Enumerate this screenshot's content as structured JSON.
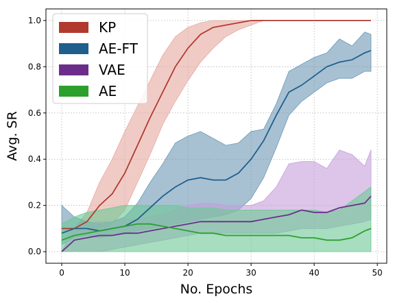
{
  "chart_data": {
    "type": "line",
    "title": "",
    "xlabel": "No. Epochs",
    "ylabel": "Avg. SR",
    "xlim": [
      -2.5,
      51.5
    ],
    "ylim": [
      -0.05,
      1.05
    ],
    "x_ticks": [
      0,
      10,
      20,
      30,
      40,
      50
    ],
    "y_ticks": [
      0.0,
      0.2,
      0.4,
      0.6,
      0.8,
      1.0
    ],
    "x_tick_labels": [
      "0",
      "10",
      "20",
      "30",
      "40",
      "50"
    ],
    "y_tick_labels": [
      "0.0",
      "0.2",
      "0.4",
      "0.6",
      "0.8",
      "1.0"
    ],
    "grid": true,
    "legend_position": "top-left",
    "series": [
      {
        "name": "KP",
        "line_color": "#b03a2e",
        "band_color": "#e6a8a0",
        "x": [
          0,
          2,
          4,
          6,
          8,
          10,
          12,
          14,
          16,
          18,
          20,
          22,
          24,
          26,
          28,
          30,
          32,
          34,
          36,
          38,
          40,
          42,
          44,
          46,
          48,
          49
        ],
        "mean": [
          0.1,
          0.1,
          0.13,
          0.2,
          0.25,
          0.34,
          0.46,
          0.58,
          0.69,
          0.8,
          0.88,
          0.94,
          0.97,
          0.98,
          0.99,
          1.0,
          1.0,
          1.0,
          1.0,
          1.0,
          1.0,
          1.0,
          1.0,
          1.0,
          1.0,
          1.0
        ],
        "lower": [
          0.1,
          0.1,
          0.1,
          0.1,
          0.12,
          0.18,
          0.3,
          0.42,
          0.55,
          0.65,
          0.74,
          0.82,
          0.88,
          0.93,
          0.96,
          0.98,
          1.0,
          1.0,
          1.0,
          1.0,
          1.0,
          1.0,
          1.0,
          1.0,
          1.0,
          1.0
        ],
        "upper": [
          0.1,
          0.1,
          0.17,
          0.3,
          0.4,
          0.52,
          0.63,
          0.74,
          0.85,
          0.93,
          0.97,
          0.99,
          1.0,
          1.0,
          1.0,
          1.0,
          1.0,
          1.0,
          1.0,
          1.0,
          1.0,
          1.0,
          1.0,
          1.0,
          1.0,
          1.0
        ]
      },
      {
        "name": "AE-FT",
        "line_color": "#1f5f8b",
        "band_color": "#6d98b5",
        "x": [
          0,
          2,
          4,
          6,
          8,
          10,
          12,
          14,
          16,
          18,
          20,
          22,
          24,
          26,
          28,
          30,
          32,
          34,
          36,
          38,
          40,
          42,
          44,
          46,
          48,
          49
        ],
        "mean": [
          0.08,
          0.1,
          0.1,
          0.09,
          0.1,
          0.11,
          0.14,
          0.19,
          0.24,
          0.28,
          0.31,
          0.32,
          0.31,
          0.31,
          0.34,
          0.4,
          0.48,
          0.59,
          0.69,
          0.72,
          0.76,
          0.8,
          0.82,
          0.83,
          0.86,
          0.87
        ],
        "lower": [
          0.03,
          0.06,
          0.07,
          0.06,
          0.07,
          0.08,
          0.09,
          0.1,
          0.11,
          0.12,
          0.13,
          0.14,
          0.15,
          0.16,
          0.18,
          0.23,
          0.32,
          0.45,
          0.59,
          0.65,
          0.69,
          0.73,
          0.75,
          0.75,
          0.78,
          0.78
        ],
        "upper": [
          0.2,
          0.15,
          0.13,
          0.12,
          0.13,
          0.15,
          0.21,
          0.3,
          0.38,
          0.47,
          0.5,
          0.52,
          0.49,
          0.46,
          0.47,
          0.52,
          0.53,
          0.64,
          0.78,
          0.81,
          0.84,
          0.86,
          0.92,
          0.89,
          0.95,
          0.94
        ]
      },
      {
        "name": "VAE",
        "line_color": "#6c2d8a",
        "band_color": "#c49fdb",
        "x": [
          0,
          2,
          4,
          6,
          8,
          10,
          12,
          14,
          16,
          18,
          20,
          22,
          24,
          26,
          28,
          30,
          32,
          34,
          36,
          38,
          40,
          42,
          44,
          46,
          48,
          49
        ],
        "mean": [
          0.0,
          0.05,
          0.06,
          0.07,
          0.07,
          0.08,
          0.08,
          0.09,
          0.1,
          0.11,
          0.12,
          0.13,
          0.13,
          0.13,
          0.13,
          0.13,
          0.14,
          0.15,
          0.16,
          0.18,
          0.17,
          0.17,
          0.19,
          0.2,
          0.21,
          0.24
        ],
        "lower": [
          0.0,
          0.0,
          0.0,
          0.0,
          0.01,
          0.02,
          0.03,
          0.04,
          0.05,
          0.06,
          0.07,
          0.08,
          0.08,
          0.08,
          0.08,
          0.08,
          0.08,
          0.08,
          0.09,
          0.1,
          0.1,
          0.1,
          0.11,
          0.12,
          0.13,
          0.14
        ],
        "upper": [
          0.0,
          0.11,
          0.12,
          0.13,
          0.13,
          0.14,
          0.14,
          0.15,
          0.16,
          0.18,
          0.2,
          0.21,
          0.21,
          0.2,
          0.2,
          0.2,
          0.22,
          0.28,
          0.38,
          0.39,
          0.39,
          0.36,
          0.44,
          0.42,
          0.37,
          0.44
        ]
      },
      {
        "name": "AE",
        "line_color": "#2ca02c",
        "band_color": "#6ac895",
        "x": [
          0,
          2,
          4,
          6,
          8,
          10,
          12,
          14,
          16,
          18,
          20,
          22,
          24,
          26,
          28,
          30,
          32,
          34,
          36,
          38,
          40,
          42,
          44,
          46,
          48,
          49
        ],
        "mean": [
          0.05,
          0.07,
          0.08,
          0.09,
          0.1,
          0.11,
          0.12,
          0.12,
          0.11,
          0.1,
          0.09,
          0.08,
          0.08,
          0.07,
          0.07,
          0.07,
          0.07,
          0.07,
          0.07,
          0.06,
          0.06,
          0.05,
          0.05,
          0.06,
          0.09,
          0.1
        ],
        "lower": [
          0.0,
          0.0,
          0.0,
          0.0,
          0.0,
          0.0,
          0.0,
          0.0,
          0.0,
          0.0,
          0.0,
          0.0,
          0.0,
          0.0,
          0.0,
          0.0,
          0.0,
          0.0,
          0.0,
          0.0,
          0.0,
          0.0,
          0.0,
          0.0,
          0.0,
          0.0
        ],
        "upper": [
          0.12,
          0.15,
          0.17,
          0.18,
          0.19,
          0.2,
          0.2,
          0.2,
          0.2,
          0.2,
          0.19,
          0.19,
          0.19,
          0.18,
          0.18,
          0.18,
          0.18,
          0.18,
          0.18,
          0.18,
          0.18,
          0.17,
          0.18,
          0.22,
          0.26,
          0.28
        ]
      }
    ]
  }
}
